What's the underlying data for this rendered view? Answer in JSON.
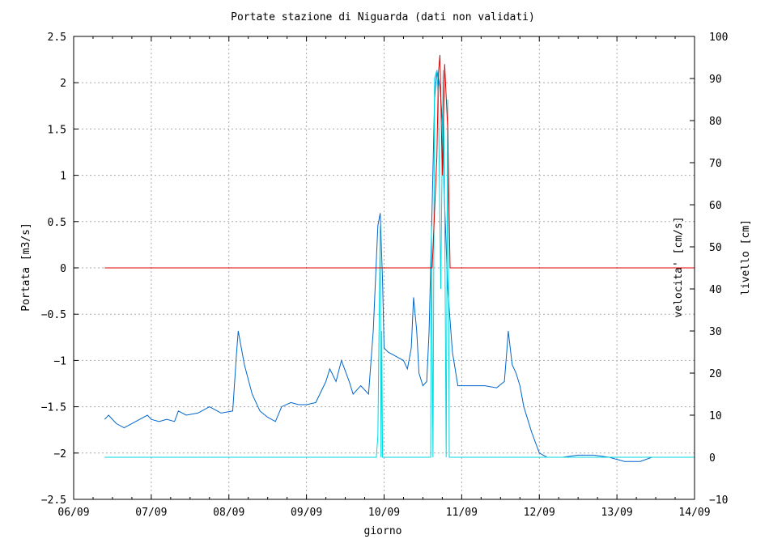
{
  "chart_data": {
    "type": "line",
    "title": "Portate stazione di Niguarda (dati non validati)",
    "xlabel": "giorno",
    "ylabel_left": "Portata [m3/s]",
    "ylabel_right_1": "velocita' [cm/s]",
    "ylabel_right_2": "livello [cm]",
    "x_ticks": [
      "06/09",
      "07/09",
      "08/09",
      "09/09",
      "10/09",
      "11/09",
      "12/09",
      "13/09",
      "14/09"
    ],
    "xlim": [
      0,
      8
    ],
    "ylim_left": [
      -2.5,
      2.5
    ],
    "ylim_right": [
      -10,
      100
    ],
    "y_ticks_left": [
      "-2.5",
      "-2",
      "-1.5",
      "-1",
      "-0.5",
      "0",
      "0.5",
      "1",
      "1.5",
      "2",
      "2.5"
    ],
    "y_ticks_right": [
      "-10",
      "0",
      "10",
      "20",
      "30",
      "40",
      "50",
      "60",
      "70",
      "80",
      "90",
      "100"
    ],
    "grid": true,
    "colors": {
      "portata": "#dd0000",
      "velocita": "#00d8e0",
      "livello": "#0066cc"
    },
    "series": [
      {
        "name": "Portata [m3/s]",
        "axis": "left",
        "color": "#dd0000",
        "points": [
          [
            0.4,
            0
          ],
          [
            4.6,
            0
          ],
          [
            4.62,
            0
          ],
          [
            4.68,
            1.2
          ],
          [
            4.7,
            2.1
          ],
          [
            4.72,
            2.3
          ],
          [
            4.75,
            1.0
          ],
          [
            4.78,
            2.2
          ],
          [
            4.82,
            1.5
          ],
          [
            4.85,
            0
          ],
          [
            4.87,
            0
          ],
          [
            8.0,
            0
          ]
        ]
      },
      {
        "name": "velocita' [cm/s]",
        "axis": "right",
        "color": "#00d8e0",
        "points": [
          [
            0.4,
            0
          ],
          [
            3.9,
            0
          ],
          [
            3.92,
            5
          ],
          [
            3.95,
            55
          ],
          [
            3.96,
            0
          ],
          [
            3.97,
            30
          ],
          [
            3.98,
            0
          ],
          [
            4.6,
            0
          ],
          [
            4.61,
            55
          ],
          [
            4.63,
            0
          ],
          [
            4.65,
            90
          ],
          [
            4.68,
            92
          ],
          [
            4.7,
            85
          ],
          [
            4.73,
            40
          ],
          [
            4.76,
            92
          ],
          [
            4.78,
            60
          ],
          [
            4.8,
            0
          ],
          [
            4.82,
            85
          ],
          [
            4.84,
            0
          ],
          [
            8.0,
            0
          ]
        ]
      },
      {
        "name": "livello [cm]",
        "axis": "right",
        "color": "#0066cc",
        "points": [
          [
            0.4,
            9
          ],
          [
            0.45,
            10
          ],
          [
            0.55,
            8
          ],
          [
            0.65,
            7
          ],
          [
            0.75,
            8
          ],
          [
            0.85,
            9
          ],
          [
            0.95,
            10
          ],
          [
            1.0,
            9
          ],
          [
            1.1,
            8.5
          ],
          [
            1.2,
            9
          ],
          [
            1.3,
            8.5
          ],
          [
            1.35,
            11
          ],
          [
            1.45,
            10
          ],
          [
            1.6,
            10.5
          ],
          [
            1.75,
            12
          ],
          [
            1.9,
            10.5
          ],
          [
            2.05,
            11
          ],
          [
            2.1,
            25
          ],
          [
            2.12,
            30
          ],
          [
            2.2,
            22
          ],
          [
            2.3,
            15
          ],
          [
            2.4,
            11
          ],
          [
            2.5,
            9.5
          ],
          [
            2.6,
            8.5
          ],
          [
            2.68,
            12
          ],
          [
            2.8,
            13
          ],
          [
            2.9,
            12.5
          ],
          [
            3.0,
            12.5
          ],
          [
            3.12,
            13
          ],
          [
            3.25,
            18
          ],
          [
            3.3,
            21
          ],
          [
            3.38,
            18
          ],
          [
            3.45,
            23
          ],
          [
            3.55,
            18
          ],
          [
            3.6,
            15
          ],
          [
            3.7,
            17
          ],
          [
            3.8,
            15
          ],
          [
            3.86,
            30
          ],
          [
            3.92,
            55
          ],
          [
            3.95,
            58
          ],
          [
            3.98,
            42
          ],
          [
            4.0,
            26
          ],
          [
            4.05,
            25
          ],
          [
            4.15,
            24
          ],
          [
            4.25,
            23
          ],
          [
            4.3,
            21
          ],
          [
            4.35,
            26
          ],
          [
            4.38,
            38
          ],
          [
            4.42,
            30
          ],
          [
            4.45,
            20
          ],
          [
            4.5,
            17
          ],
          [
            4.55,
            18
          ],
          [
            4.58,
            30
          ],
          [
            4.62,
            60
          ],
          [
            4.65,
            85
          ],
          [
            4.68,
            92
          ],
          [
            4.72,
            88
          ],
          [
            4.75,
            80
          ],
          [
            4.78,
            60
          ],
          [
            4.82,
            40
          ],
          [
            4.88,
            25
          ],
          [
            4.95,
            17
          ],
          [
            5.1,
            17
          ],
          [
            5.3,
            17
          ],
          [
            5.45,
            16.5
          ],
          [
            5.55,
            18
          ],
          [
            5.58,
            25
          ],
          [
            5.6,
            30
          ],
          [
            5.65,
            22
          ],
          [
            5.7,
            20
          ],
          [
            5.75,
            17
          ],
          [
            5.8,
            12
          ],
          [
            5.9,
            6
          ],
          [
            6.0,
            1
          ],
          [
            6.1,
            0
          ],
          [
            6.3,
            0
          ],
          [
            6.5,
            0.5
          ],
          [
            6.7,
            0.5
          ],
          [
            6.9,
            0
          ],
          [
            7.1,
            -1
          ],
          [
            7.3,
            -1
          ],
          [
            7.45,
            0
          ],
          [
            7.5,
            0
          ]
        ]
      }
    ]
  }
}
